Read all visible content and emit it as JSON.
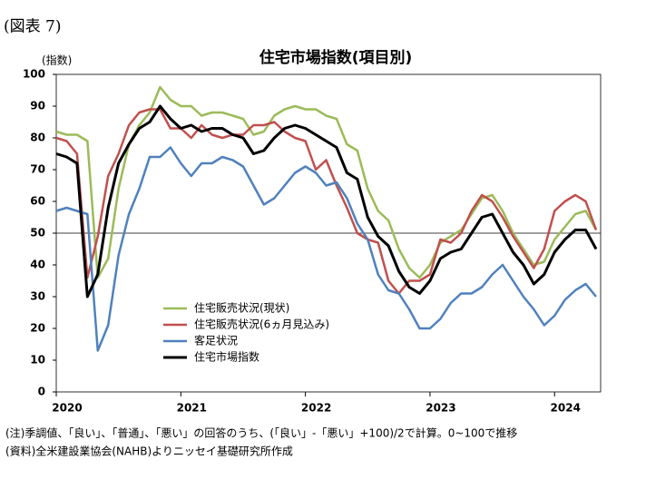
{
  "header": "(図表 7)",
  "chart_data": {
    "type": "line",
    "title": "住宅市場指数(項目別)",
    "y_label": "(指数)",
    "categories": [
      "2020",
      null,
      null,
      null,
      null,
      null,
      null,
      null,
      null,
      null,
      null,
      null,
      "2021",
      null,
      null,
      null,
      null,
      null,
      null,
      null,
      null,
      null,
      null,
      null,
      "2022",
      null,
      null,
      null,
      null,
      null,
      null,
      null,
      null,
      null,
      null,
      null,
      "2023",
      null,
      null,
      null,
      null,
      null,
      null,
      null,
      null,
      null,
      null,
      null,
      "2024",
      null,
      null,
      null,
      null
    ],
    "series": [
      {
        "name": "住宅販売状況(現状)",
        "color": "#9bbb59",
        "values": [
          82,
          81,
          81,
          79,
          36,
          42,
          64,
          78,
          84,
          88,
          96,
          92,
          90,
          90,
          87,
          88,
          88,
          87,
          86,
          81,
          82,
          87,
          89,
          90,
          89,
          89,
          87,
          86,
          78,
          76,
          64,
          57,
          54,
          45,
          39,
          36,
          40,
          47,
          49,
          51,
          56,
          61,
          62,
          57,
          50,
          45,
          40,
          41,
          48,
          52,
          56,
          57,
          51
        ]
      },
      {
        "name": "住宅販売状況(6ヵ月見込み)",
        "color": "#c0504d",
        "values": [
          80,
          79,
          75,
          36,
          49,
          68,
          75,
          84,
          88,
          89,
          89,
          83,
          83,
          80,
          84,
          81,
          80,
          81,
          81,
          84,
          84,
          85,
          82,
          80,
          79,
          70,
          73,
          65,
          58,
          50,
          48,
          47,
          35,
          31,
          35,
          35,
          37,
          48,
          47,
          50,
          57,
          62,
          60,
          55,
          49,
          44,
          39,
          45,
          57,
          60,
          62,
          60,
          51
        ]
      },
      {
        "name": "客足状況",
        "color": "#4f81bd",
        "values": [
          57,
          58,
          57,
          56,
          13,
          21,
          43,
          56,
          64,
          74,
          74,
          77,
          72,
          68,
          72,
          72,
          74,
          73,
          71,
          65,
          59,
          61,
          65,
          69,
          71,
          69,
          65,
          66,
          61,
          53,
          48,
          37,
          32,
          31,
          26,
          20,
          20,
          23,
          28,
          31,
          31,
          33,
          37,
          40,
          35,
          30,
          26,
          21,
          24,
          29,
          32,
          34,
          30
        ]
      },
      {
        "name": "住宅市場指数",
        "color": "#000000",
        "values": [
          75,
          74,
          72,
          30,
          37,
          58,
          72,
          78,
          83,
          85,
          90,
          86,
          83,
          84,
          82,
          83,
          83,
          81,
          80,
          75,
          76,
          80,
          83,
          84,
          83,
          81,
          79,
          77,
          69,
          67,
          55,
          49,
          46,
          38,
          33,
          31,
          35,
          42,
          44,
          45,
          50,
          55,
          56,
          50,
          44,
          40,
          34,
          37,
          44,
          48,
          51,
          51,
          45
        ]
      }
    ],
    "ylim": [
      0,
      100
    ],
    "yticks": [
      0,
      10,
      20,
      30,
      40,
      50,
      60,
      70,
      80,
      90,
      100
    ],
    "reference_line": 50,
    "notes": [
      "(注)季調値、「良い」、「普通」、「悪い」の回答のうち、(「良い」-「悪い」+100)/2で計算。0~100で推移",
      "(資料)全米建設業協会(NAHB)よりニッセイ基礎研究所作成"
    ]
  }
}
